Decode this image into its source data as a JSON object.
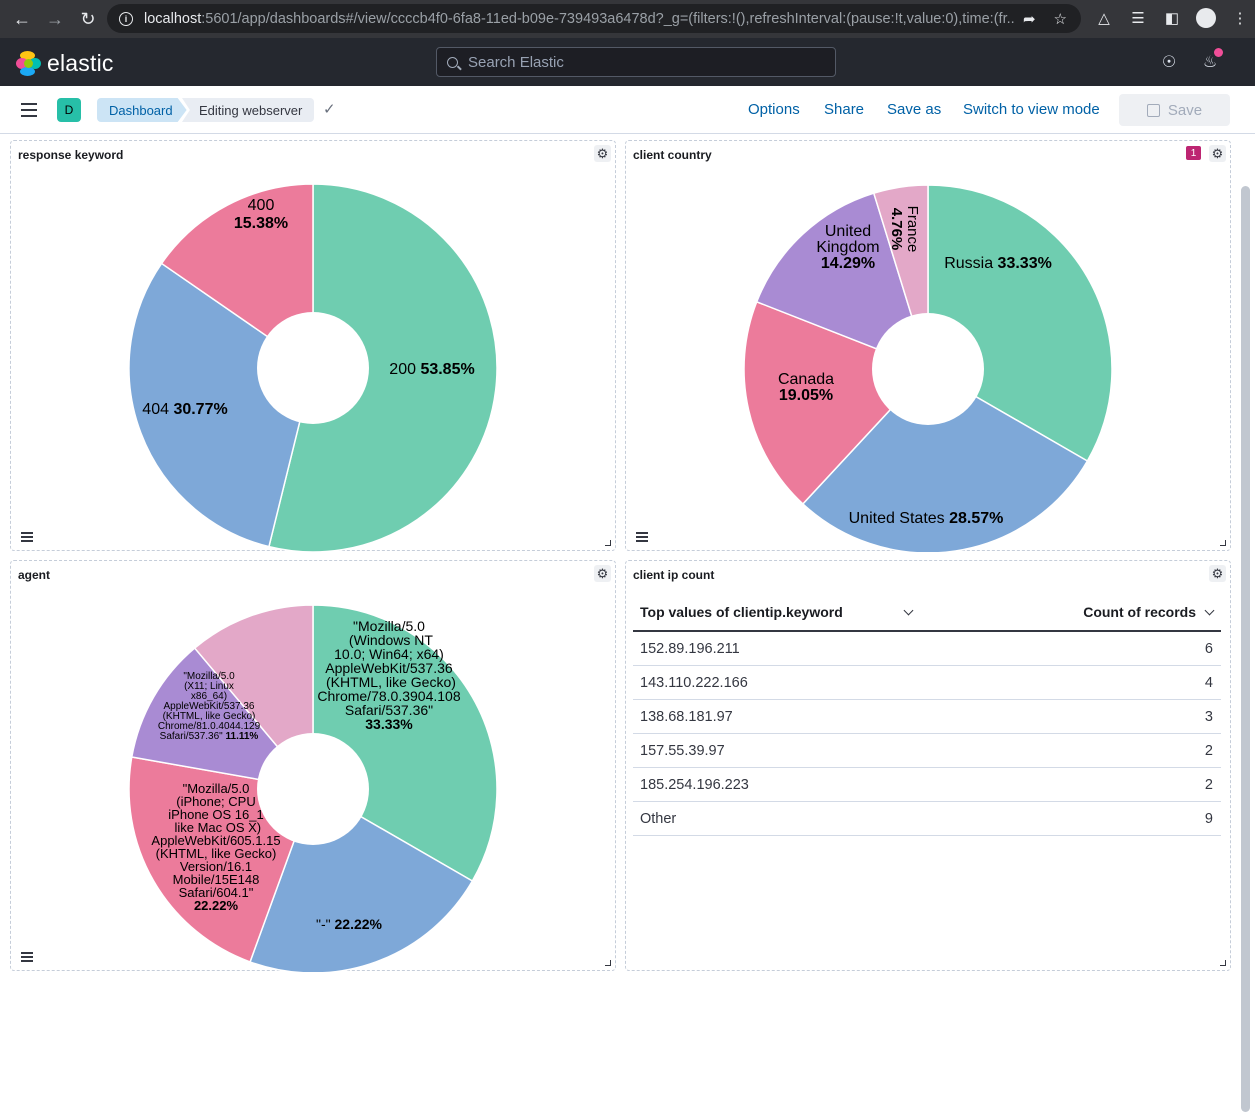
{
  "browser": {
    "url_host": "localhost",
    "url_rest": ":5601/app/dashboards#/view/ccccb4f0-6fa8-11ed-b09e-739493a6478d?_g=(filters:!(),refreshInterval:(pause:!t,value:0),time:(fr..."
  },
  "header": {
    "logo_text": "elastic",
    "search_placeholder": "Search Elastic"
  },
  "app_bar": {
    "space_initial": "D",
    "breadcrumbs": [
      "Dashboard",
      "Editing webserver"
    ],
    "links": [
      "Options",
      "Share",
      "Save as",
      "Switch to view mode"
    ],
    "save_label": "Save"
  },
  "panels": {
    "response": {
      "title": "response keyword"
    },
    "country": {
      "title": "client country",
      "filter_count": "1"
    },
    "agent": {
      "title": "agent"
    },
    "clientip": {
      "title": "client ip count"
    }
  },
  "colors": {
    "green": "#6fcdb0",
    "blue": "#7ea8d8",
    "pink": "#ec7b9b",
    "purple": "#a98bd3",
    "light_pink": "#e3a8c8"
  },
  "chart_data": [
    {
      "type": "pie",
      "title": "response keyword",
      "donut": true,
      "slices": [
        {
          "label": "200",
          "value": 53.85,
          "color": "#6fcdb0"
        },
        {
          "label": "404",
          "value": 30.77,
          "color": "#7ea8d8"
        },
        {
          "label": "400",
          "value": 15.38,
          "color": "#ec7b9b"
        }
      ]
    },
    {
      "type": "pie",
      "title": "client country",
      "donut": true,
      "slices": [
        {
          "label": "Russia",
          "value": 33.33,
          "color": "#6fcdb0"
        },
        {
          "label": "United States",
          "value": 28.57,
          "color": "#7ea8d8"
        },
        {
          "label": "Canada",
          "value": 19.05,
          "color": "#ec7b9b"
        },
        {
          "label": "United Kingdom",
          "value": 14.29,
          "color": "#a98bd3"
        },
        {
          "label": "France",
          "value": 4.76,
          "color": "#e3a8c8"
        }
      ]
    },
    {
      "type": "pie",
      "title": "agent",
      "donut": true,
      "slices": [
        {
          "label": "\"Mozilla/5.0 (Windows NT 10.0; Win64; x64) AppleWebKit/537.36 (KHTML, like Gecko) Chrome/78.0.3904.108 Safari/537.36\"",
          "value": 33.33,
          "color": "#6fcdb0"
        },
        {
          "label": "\"-\"",
          "value": 22.22,
          "color": "#7ea8d8"
        },
        {
          "label": "\"Mozilla/5.0 (iPhone; CPU iPhone OS 16_1 like Mac OS X) AppleWebKit/605.1.15 (KHTML, like Gecko) Version/16.1 Mobile/15E148 Safari/604.1\"",
          "value": 22.22,
          "color": "#ec7b9b"
        },
        {
          "label": "\"Mozilla/5.0 (X11; Linux x86_64) AppleWebKit/537.36 (KHTML, like Gecko) Chrome/81.0.4044.129 Safari/537.36\"",
          "value": 11.11,
          "color": "#a98bd3"
        },
        {
          "label": "",
          "value": 11.11,
          "color": "#e3a8c8"
        }
      ]
    },
    {
      "type": "table",
      "title": "client ip count",
      "columns": [
        "Top values of clientip.keyword",
        "Count of records"
      ],
      "rows": [
        [
          "152.89.196.211",
          6
        ],
        [
          "143.110.222.166",
          4
        ],
        [
          "138.68.181.97",
          3
        ],
        [
          "157.55.39.97",
          2
        ],
        [
          "185.254.196.223",
          2
        ],
        [
          "Other",
          9
        ]
      ]
    }
  ],
  "pie_labels": {
    "response": [
      {
        "lines": [
          "200 |53.85%"
        ]
      },
      {
        "lines": [
          "404 |30.77%"
        ]
      },
      {
        "lines": [
          "400",
          "|15.38%"
        ]
      }
    ],
    "country": [
      {
        "lines": [
          "Russia |33.33%"
        ]
      },
      {
        "lines": [
          "United States |28.57%"
        ]
      },
      {
        "lines": [
          "Canada",
          "|19.05%"
        ]
      },
      {
        "lines": [
          "United",
          "Kingdom",
          "|14.29%"
        ]
      },
      {
        "lines": [
          "France",
          "|4.76%"
        ]
      }
    ],
    "agent": [
      {
        "lines": [
          "\"Mozilla/5.0",
          " (Windows NT",
          "10.0; Win64; x64)",
          "AppleWebKit/537.36",
          " (KHTML, like Gecko)",
          "Chrome/78.0.3904.108",
          "Safari/537.36\"",
          "|33.33%"
        ]
      },
      {
        "lines": [
          "\"-\" |22.22%"
        ]
      },
      {
        "lines": [
          "\"Mozilla/5.0",
          "(iPhone; CPU",
          "iPhone OS 16_1",
          " like Mac OS X)",
          "AppleWebKit/605.1.15",
          "(KHTML, like Gecko)",
          "Version/16.1",
          "Mobile/15E148",
          "Safari/604.1\"",
          "|22.22%"
        ]
      },
      {
        "lines": [
          "\"Mozilla/5.0",
          "(X11; Linux",
          "x86_64)",
          "AppleWebKit/537.36",
          "(KHTML, like Gecko)",
          "Chrome/81.0.4044.129",
          "Safari/537.36\" |11.11%"
        ]
      },
      {
        "lines": []
      }
    ]
  }
}
